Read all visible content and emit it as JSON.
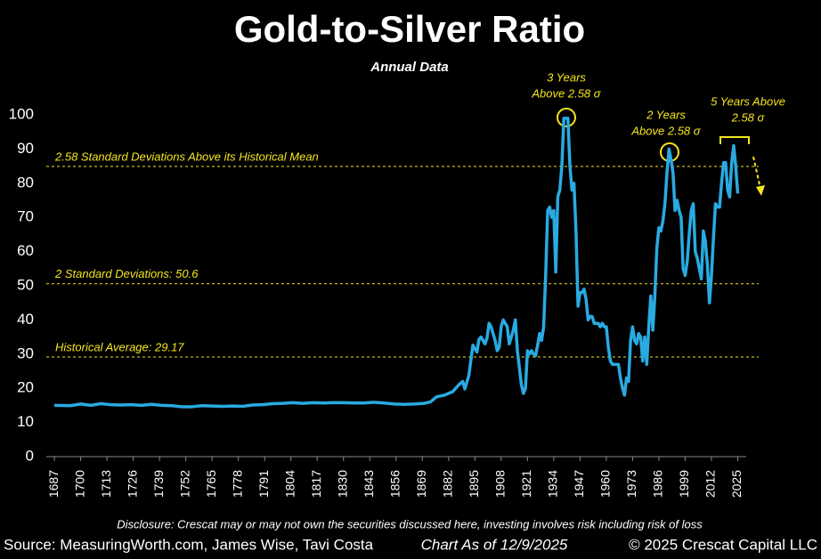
{
  "chart_data": {
    "type": "line",
    "title": "Gold-to-Silver Ratio",
    "subtitle": "Annual Data",
    "disclosure": "Disclosure: Crescat may or may not own the securities discussed here, investing involves risk including risk of loss",
    "source": "Source: MeasuringWorth.com, James Wise, Tavi Costa",
    "chart_date": "Chart As of 12/9/2025",
    "copyright": "© 2025 Crescat Capital LLC",
    "color": "#29aae1",
    "x": [
      1687,
      1695,
      1700,
      1705,
      1710,
      1715,
      1720,
      1725,
      1730,
      1735,
      1740,
      1745,
      1750,
      1755,
      1760,
      1765,
      1770,
      1775,
      1780,
      1785,
      1790,
      1795,
      1800,
      1805,
      1810,
      1815,
      1820,
      1825,
      1830,
      1835,
      1840,
      1845,
      1850,
      1855,
      1860,
      1865,
      1870,
      1873,
      1876,
      1880,
      1884,
      1887,
      1889,
      1890,
      1892,
      1894,
      1895,
      1896,
      1897,
      1898,
      1899,
      1900,
      1901,
      1902,
      1903,
      1904,
      1905,
      1906,
      1907,
      1908,
      1909,
      1910,
      1911,
      1912,
      1913,
      1914,
      1915,
      1916,
      1917,
      1918,
      1919,
      1920,
      1921,
      1922,
      1923,
      1924,
      1925,
      1926,
      1927,
      1928,
      1929,
      1930,
      1931,
      1932,
      1933,
      1934,
      1935,
      1936,
      1937,
      1938,
      1939,
      1940,
      1941,
      1942,
      1943,
      1944,
      1945,
      1946,
      1947,
      1948,
      1949,
      1950,
      1951,
      1952,
      1953,
      1954,
      1955,
      1956,
      1957,
      1958,
      1959,
      1960,
      1961,
      1962,
      1963,
      1964,
      1965,
      1966,
      1967,
      1968,
      1969,
      1970,
      1971,
      1972,
      1973,
      1974,
      1975,
      1976,
      1977,
      1978,
      1979,
      1980,
      1981,
      1982,
      1983,
      1984,
      1985,
      1986,
      1987,
      1988,
      1989,
      1990,
      1991,
      1992,
      1993,
      1994,
      1995,
      1996,
      1997,
      1998,
      1999,
      2000,
      2001,
      2002,
      2003,
      2004,
      2005,
      2006,
      2007,
      2008,
      2009,
      2010,
      2011,
      2012,
      2013,
      2014,
      2015,
      2016,
      2017,
      2018,
      2019,
      2020,
      2021,
      2022,
      2023,
      2024,
      2025
    ],
    "values": [
      15,
      14.9,
      15.4,
      15,
      15.5,
      15.2,
      15.1,
      15.2,
      15,
      15.3,
      15,
      14.9,
      14.6,
      14.6,
      14.9,
      14.8,
      14.7,
      14.8,
      14.7,
      15.1,
      15.2,
      15.5,
      15.6,
      15.8,
      15.6,
      15.8,
      15.7,
      15.8,
      15.8,
      15.7,
      15.7,
      15.9,
      15.7,
      15.4,
      15.3,
      15.4,
      15.6,
      16,
      17.5,
      18,
      19,
      21,
      22,
      19.8,
      23.7,
      32.6,
      31.6,
      30.6,
      34.2,
      35,
      34,
      33,
      34.7,
      39,
      38,
      36,
      34,
      31,
      32,
      38,
      40,
      39,
      38,
      33,
      35,
      37,
      40,
      31,
      26,
      21,
      18.5,
      20,
      31,
      30,
      31,
      30,
      29.5,
      32.5,
      36,
      34,
      38,
      53,
      72,
      73,
      70,
      72,
      54,
      76,
      78,
      85,
      99,
      99,
      99,
      85,
      78,
      80,
      66,
      44,
      48,
      48,
      49,
      46,
      40,
      41,
      41,
      39,
      39,
      39,
      38,
      39,
      38,
      38,
      32,
      28,
      27,
      27,
      27,
      27,
      23,
      20,
      18,
      23,
      22,
      34,
      38,
      34,
      33,
      36,
      35,
      28,
      35,
      27,
      38,
      47,
      37,
      47,
      61,
      67,
      66,
      69,
      74,
      83,
      90,
      87,
      83,
      72,
      75,
      72,
      70,
      55,
      53,
      57,
      65,
      72,
      74,
      60,
      58,
      55,
      52,
      66,
      63,
      56,
      45,
      53,
      64,
      74,
      73,
      73,
      80,
      86,
      86,
      78,
      76,
      86,
      91,
      85,
      77
    ],
    "xlim": [
      1683,
      2038
    ],
    "xticks": [
      1687,
      1700,
      1713,
      1726,
      1739,
      1752,
      1765,
      1778,
      1791,
      1804,
      1817,
      1830,
      1843,
      1856,
      1869,
      1882,
      1895,
      1908,
      1921,
      1934,
      1947,
      1960,
      1973,
      1986,
      1999,
      2012,
      2025
    ],
    "ylim": [
      0,
      100
    ],
    "yticks": [
      0,
      10,
      20,
      30,
      40,
      50,
      60,
      70,
      80,
      90,
      100
    ],
    "reference_lines": [
      {
        "value": 84.9,
        "label": "2.58 Standard Deviations Above its Historical Mean"
      },
      {
        "value": 50.6,
        "label": "2 Standard Deviations: 50.6"
      },
      {
        "value": 29.17,
        "label": "Historical Average: 29.17"
      }
    ],
    "annotations": [
      {
        "lines": [
          "3 Years",
          "Above 2.58 σ"
        ]
      },
      {
        "lines": [
          "2 Years",
          "Above 2.58 σ"
        ]
      },
      {
        "lines": [
          "5 Years Above",
          "2.58 σ"
        ]
      }
    ]
  }
}
